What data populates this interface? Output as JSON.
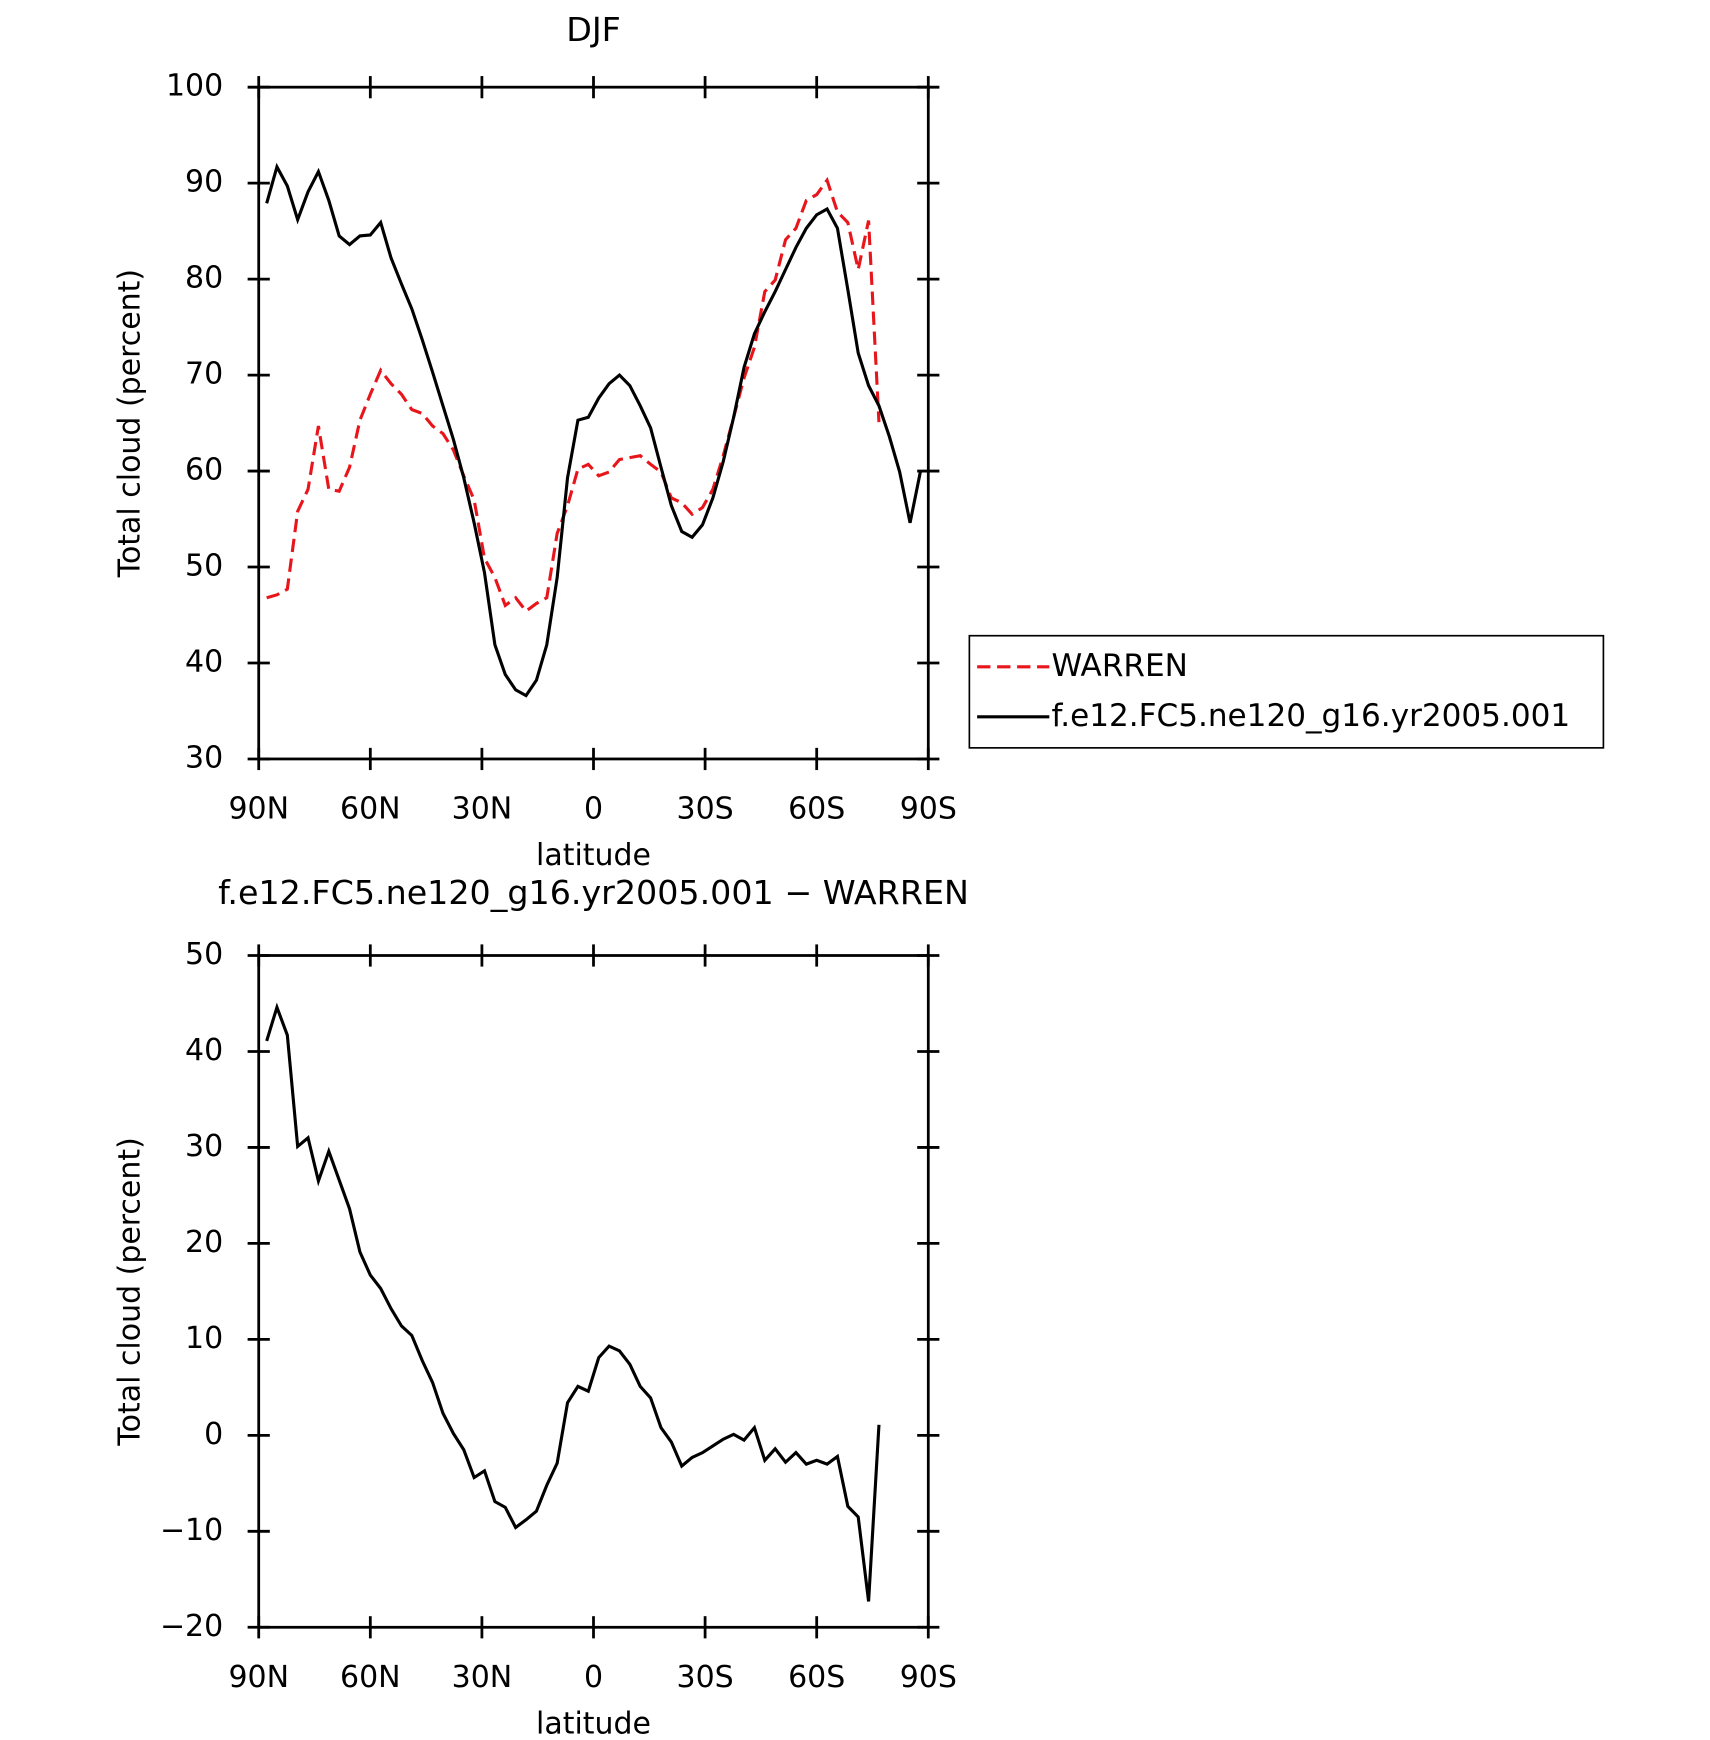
{
  "chart_data": [
    {
      "type": "line",
      "title": "DJF",
      "x_label": "latitude",
      "y_label": "Total cloud (percent)",
      "x": [
        87.86,
        85.1,
        82.31,
        79.53,
        76.74,
        73.95,
        71.16,
        68.37,
        65.58,
        62.79,
        60.0,
        57.21,
        54.42,
        51.63,
        48.84,
        46.05,
        43.26,
        40.47,
        37.67,
        34.88,
        32.09,
        29.3,
        26.51,
        23.72,
        20.93,
        18.14,
        15.35,
        12.56,
        9.77,
        6.98,
        4.19,
        1.4,
        -1.4,
        -4.19,
        -6.98,
        -9.77,
        -12.56,
        -15.35,
        -18.14,
        -20.93,
        -23.72,
        -26.51,
        -29.3,
        -32.09,
        -34.88,
        -37.67,
        -40.47,
        -43.26,
        -46.05,
        -48.84,
        -51.63,
        -54.42,
        -57.21,
        -60.0,
        -62.79,
        -65.58,
        -68.37,
        -71.16,
        -73.95,
        -76.74,
        -79.53,
        -82.31,
        -85.1,
        -87.86
      ],
      "series": [
        {
          "name": "WARREN",
          "color": "#e8151b",
          "dash": true,
          "values": [
            46.8,
            47.1,
            47.7,
            55.8,
            58.1,
            64.7,
            58.1,
            57.9,
            60.4,
            65.3,
            68.0,
            70.5,
            69.1,
            68.0,
            66.4,
            66.0,
            64.7,
            63.9,
            62.2,
            59.5,
            57.0,
            50.9,
            48.9,
            46.0,
            46.8,
            45.4,
            46.2,
            46.8,
            53.5,
            56.4,
            60.2,
            60.7,
            59.5,
            59.9,
            61.2,
            61.4,
            61.6,
            60.7,
            59.9,
            57.2,
            56.7,
            55.5,
            56.2,
            58.1,
            61.6,
            65.6,
            69.7,
            72.9,
            78.7,
            79.9,
            84.1,
            85.3,
            88.2,
            88.8,
            90.3,
            87.0,
            85.9,
            81.0,
            86.1,
            65.1,
            null,
            null,
            null,
            null
          ]
        },
        {
          "name": "f.e12.FC5.ne120_g16.yr2005.001",
          "color": "#000000",
          "dash": false,
          "values": [
            87.9,
            91.7,
            89.7,
            86.2,
            89.1,
            91.2,
            88.2,
            84.5,
            83.6,
            84.5,
            84.6,
            85.9,
            82.2,
            79.5,
            76.9,
            73.7,
            70.3,
            66.8,
            63.3,
            59.3,
            54.6,
            49.4,
            41.9,
            38.8,
            37.2,
            36.6,
            38.2,
            41.9,
            48.9,
            59.3,
            65.3,
            65.6,
            67.6,
            69.1,
            70.0,
            68.9,
            66.8,
            64.5,
            60.4,
            56.4,
            53.7,
            53.1,
            54.4,
            57.2,
            61.0,
            65.6,
            70.8,
            74.3,
            76.6,
            78.7,
            81.0,
            83.3,
            85.3,
            86.7,
            87.3,
            85.3,
            78.9,
            72.3,
            68.9,
            66.8,
            63.6,
            59.9,
            54.6,
            59.9
          ]
        }
      ],
      "xlim": [
        90,
        -90
      ],
      "xticks": [
        {
          "value": 90,
          "label": "90N"
        },
        {
          "value": 60,
          "label": "60N"
        },
        {
          "value": 30,
          "label": "30N"
        },
        0,
        {
          "value": -30,
          "label": "30S"
        },
        {
          "value": -60,
          "label": "60S"
        },
        {
          "value": -90,
          "label": "90S"
        }
      ],
      "ylim": [
        30,
        100
      ],
      "yticks": [
        30,
        40,
        50,
        60,
        70,
        80,
        90,
        100
      ],
      "legend": "right"
    },
    {
      "type": "line",
      "title": "f.e12.FC5.ne120_g16.yr2005.001 − WARREN",
      "x_label": "latitude",
      "y_label": "Total cloud (percent)",
      "x": [
        87.86,
        85.1,
        82.31,
        79.53,
        76.74,
        73.95,
        71.16,
        68.37,
        65.58,
        62.79,
        60.0,
        57.21,
        54.42,
        51.63,
        48.84,
        46.05,
        43.26,
        40.47,
        37.67,
        34.88,
        32.09,
        29.3,
        26.51,
        23.72,
        20.93,
        18.14,
        15.35,
        12.56,
        9.77,
        6.98,
        4.19,
        1.4,
        -1.4,
        -4.19,
        -6.98,
        -9.77,
        -12.56,
        -15.35,
        -18.14,
        -20.93,
        -23.72,
        -26.51,
        -29.3,
        -32.09,
        -34.88,
        -37.67,
        -40.47,
        -43.26,
        -46.05,
        -48.84,
        -51.63,
        -54.42,
        -57.21,
        -60.0,
        -62.79,
        -65.58,
        -68.37,
        -71.16,
        -73.95,
        -76.74,
        -79.53,
        -82.31,
        -85.1,
        -87.86
      ],
      "series": [
        {
          "color": "#000000",
          "dash": false,
          "values": [
            41.1,
            44.6,
            41.7,
            30.1,
            31.0,
            26.5,
            29.6,
            26.6,
            23.6,
            19.1,
            16.7,
            15.3,
            13.2,
            11.4,
            10.4,
            7.8,
            5.5,
            2.3,
            0.2,
            -1.5,
            -4.4,
            -3.7,
            -6.9,
            -7.5,
            -9.6,
            -8.8,
            -7.9,
            -5.2,
            -2.9,
            3.4,
            5.1,
            4.6,
            8.1,
            9.3,
            8.8,
            7.4,
            5.1,
            3.9,
            0.8,
            -0.7,
            -3.2,
            -2.3,
            -1.8,
            -1.1,
            -0.4,
            0.1,
            -0.5,
            0.8,
            -2.6,
            -1.4,
            -2.8,
            -1.8,
            -3.0,
            -2.6,
            -3.0,
            -2.2,
            -7.4,
            -8.5,
            -17.3,
            1.1,
            null,
            null,
            null,
            null
          ]
        }
      ],
      "xlim": [
        90,
        -90
      ],
      "xticks": [
        {
          "value": 90,
          "label": "90N"
        },
        {
          "value": 60,
          "label": "60N"
        },
        {
          "value": 30,
          "label": "30N"
        },
        0,
        {
          "value": -30,
          "label": "30S"
        },
        {
          "value": -60,
          "label": "60S"
        },
        {
          "value": -90,
          "label": "90S"
        }
      ],
      "ylim": [
        -20,
        50
      ],
      "yticks": [
        {
          "value": -20,
          "label": "−20"
        },
        {
          "value": -10,
          "label": "−10"
        },
        0,
        10,
        20,
        30,
        40,
        50
      ]
    }
  ]
}
